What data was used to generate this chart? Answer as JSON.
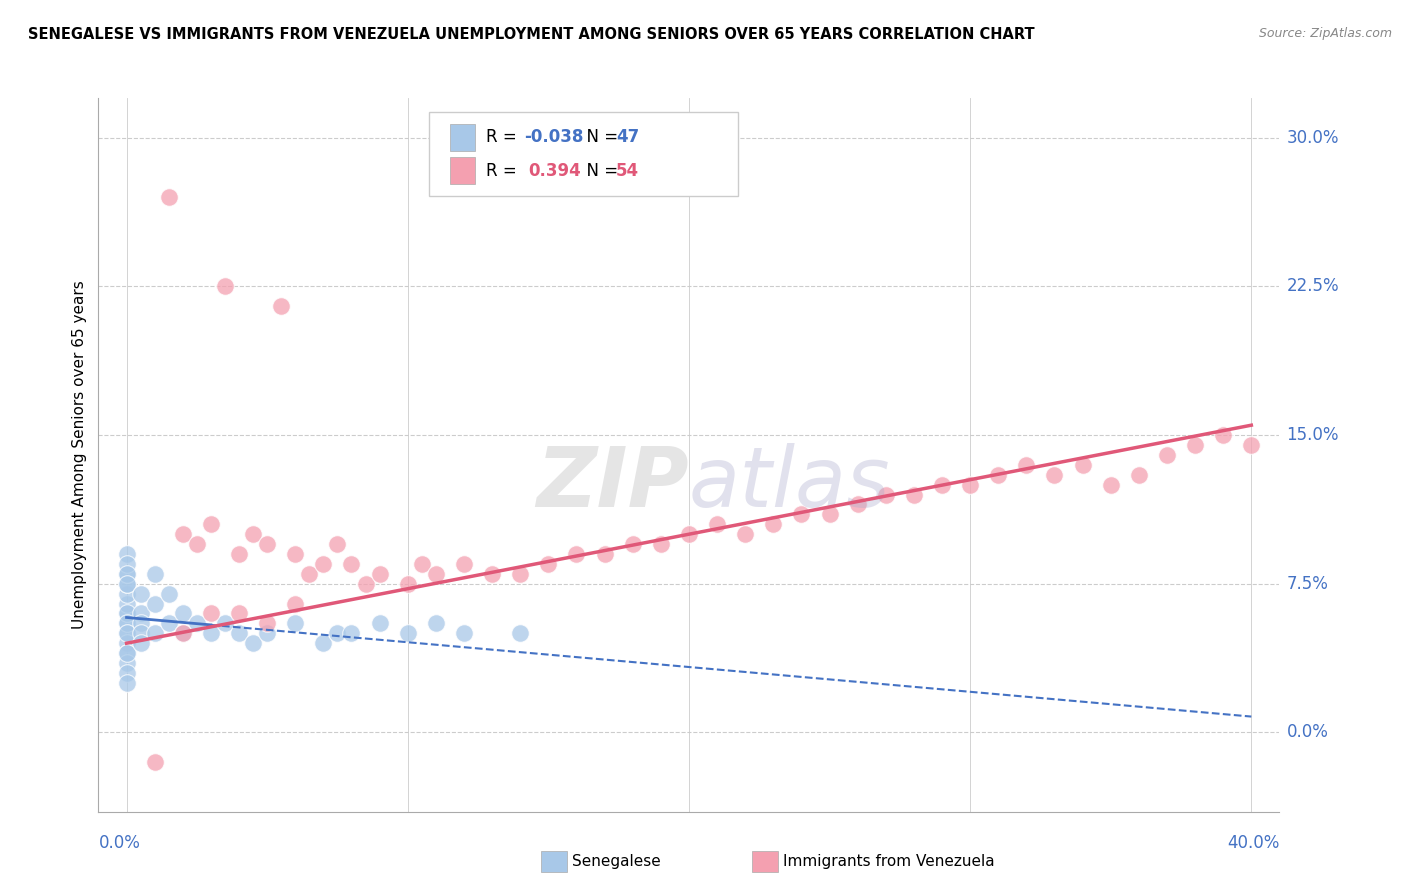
{
  "title": "SENEGALESE VS IMMIGRANTS FROM VENEZUELA UNEMPLOYMENT AMONG SENIORS OVER 65 YEARS CORRELATION CHART",
  "source": "Source: ZipAtlas.com",
  "ylabel": "Unemployment Among Seniors over 65 years",
  "color_blue": "#a8c8e8",
  "color_pink": "#f4a0b0",
  "color_blue_line": "#4472C4",
  "color_pink_line": "#e05878",
  "color_blue_text": "#4472C4",
  "r1": "-0.038",
  "n1": "47",
  "r2": "0.394",
  "n2": "54",
  "xlim": [
    -1.0,
    41.0
  ],
  "ylim": [
    -4.0,
    32.0
  ],
  "ytick_vals": [
    0.0,
    7.5,
    15.0,
    22.5,
    30.0
  ],
  "ytick_labels": [
    "0.0%",
    "7.5%",
    "15.0%",
    "22.5%",
    "30.0%"
  ],
  "sen_x": [
    0.0,
    0.0,
    0.0,
    0.0,
    0.0,
    0.0,
    0.0,
    0.0,
    0.0,
    0.0,
    0.0,
    0.0,
    0.0,
    0.0,
    0.0,
    0.0,
    0.0,
    0.0,
    0.0,
    0.0,
    0.5,
    0.5,
    0.5,
    0.5,
    0.5,
    1.0,
    1.0,
    1.0,
    1.5,
    1.5,
    2.0,
    2.0,
    2.5,
    3.0,
    3.5,
    4.0,
    4.5,
    5.0,
    6.0,
    7.0,
    7.5,
    8.0,
    9.0,
    10.0,
    11.0,
    12.0,
    14.0
  ],
  "sen_y": [
    5.5,
    6.0,
    6.5,
    7.0,
    7.5,
    8.0,
    5.0,
    4.5,
    4.0,
    3.5,
    3.0,
    2.5,
    9.0,
    8.5,
    8.0,
    7.5,
    6.0,
    5.5,
    5.0,
    4.0,
    6.0,
    5.5,
    5.0,
    4.5,
    7.0,
    5.0,
    6.5,
    8.0,
    5.5,
    7.0,
    5.0,
    6.0,
    5.5,
    5.0,
    5.5,
    5.0,
    4.5,
    5.0,
    5.5,
    4.5,
    5.0,
    5.0,
    5.5,
    5.0,
    5.5,
    5.0,
    5.0
  ],
  "ven_x": [
    1.5,
    3.5,
    5.5,
    2.0,
    2.5,
    3.0,
    4.0,
    4.5,
    5.0,
    6.0,
    6.5,
    7.0,
    7.5,
    8.0,
    8.5,
    9.0,
    10.0,
    10.5,
    11.0,
    12.0,
    13.0,
    14.0,
    15.0,
    16.0,
    17.0,
    18.0,
    19.0,
    20.0,
    21.0,
    22.0,
    23.0,
    24.0,
    25.0,
    26.0,
    27.0,
    28.0,
    29.0,
    30.0,
    31.0,
    32.0,
    33.0,
    34.0,
    35.0,
    36.0,
    37.0,
    38.0,
    39.0,
    40.0,
    3.0,
    1.0,
    2.0,
    4.0,
    5.0,
    6.0
  ],
  "ven_y": [
    27.0,
    22.5,
    21.5,
    10.0,
    9.5,
    10.5,
    9.0,
    10.0,
    9.5,
    9.0,
    8.0,
    8.5,
    9.5,
    8.5,
    7.5,
    8.0,
    7.5,
    8.5,
    8.0,
    8.5,
    8.0,
    8.0,
    8.5,
    9.0,
    9.0,
    9.5,
    9.5,
    10.0,
    10.5,
    10.0,
    10.5,
    11.0,
    11.0,
    11.5,
    12.0,
    12.0,
    12.5,
    12.5,
    13.0,
    13.5,
    13.0,
    13.5,
    12.5,
    13.0,
    14.0,
    14.5,
    15.0,
    14.5,
    6.0,
    -1.5,
    5.0,
    6.0,
    5.5,
    6.5
  ],
  "blue_line_x0": 0.0,
  "blue_line_x1": 40.0,
  "blue_line_y0": 5.8,
  "blue_line_y1": 0.8,
  "pink_line_x0": 0.0,
  "pink_line_x1": 40.0,
  "pink_line_y0": 4.5,
  "pink_line_y1": 15.5
}
